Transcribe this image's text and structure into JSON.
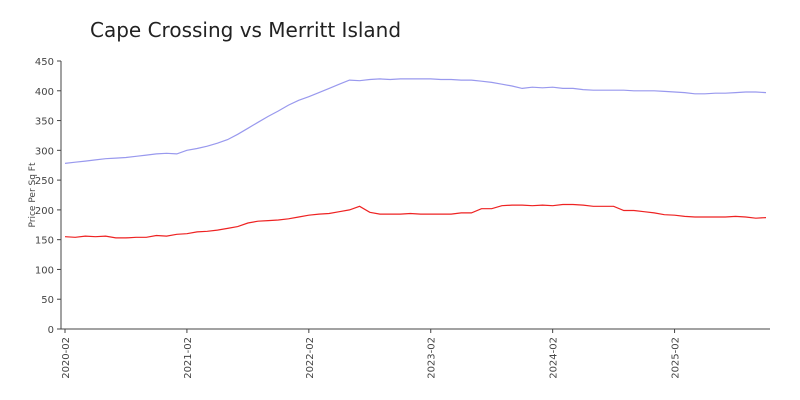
{
  "chart_data": {
    "type": "line",
    "title": "Cape Crossing vs Merritt Island",
    "ylabel": "Price Per Sq Ft",
    "x": [
      "2020-02",
      "2020-03",
      "2020-04",
      "2020-05",
      "2020-06",
      "2020-07",
      "2020-08",
      "2020-09",
      "2020-10",
      "2020-11",
      "2020-12",
      "2021-01",
      "2021-02",
      "2021-03",
      "2021-04",
      "2021-05",
      "2021-06",
      "2021-07",
      "2021-08",
      "2021-09",
      "2021-10",
      "2021-11",
      "2021-12",
      "2022-01",
      "2022-02",
      "2022-03",
      "2022-04",
      "2022-05",
      "2022-06",
      "2022-07",
      "2022-08",
      "2022-09",
      "2022-10",
      "2022-11",
      "2022-12",
      "2023-01",
      "2023-02",
      "2023-03",
      "2023-04",
      "2023-05",
      "2023-06",
      "2023-07",
      "2023-08",
      "2023-09",
      "2023-10",
      "2023-11",
      "2023-12",
      "2024-01",
      "2024-02",
      "2024-03",
      "2024-04",
      "2024-05",
      "2024-06",
      "2024-07",
      "2024-08",
      "2024-09",
      "2024-10",
      "2024-11",
      "2024-12",
      "2025-01",
      "2025-02",
      "2025-03",
      "2025-04",
      "2025-05",
      "2025-06",
      "2025-07",
      "2025-08",
      "2025-09",
      "2025-10",
      "2025-11"
    ],
    "series": [
      {
        "color": "#9999ee",
        "values": [
          278,
          280,
          282,
          284,
          286,
          287,
          288,
          290,
          292,
          294,
          295,
          294,
          300,
          303,
          307,
          312,
          318,
          327,
          337,
          347,
          357,
          366,
          376,
          384,
          390,
          397,
          404,
          411,
          418,
          417,
          419,
          420,
          419,
          420,
          420,
          420,
          420,
          419,
          419,
          418,
          418,
          416,
          414,
          411,
          408,
          404,
          406,
          405,
          406,
          404,
          404,
          402,
          401,
          401,
          401,
          401,
          400,
          400,
          400,
          399,
          398,
          397,
          395,
          395,
          396,
          396,
          397,
          398,
          398,
          397
        ]
      },
      {
        "color": "#ee2222",
        "values": [
          155,
          154,
          156,
          155,
          156,
          153,
          153,
          154,
          154,
          157,
          156,
          159,
          160,
          163,
          164,
          166,
          169,
          172,
          178,
          181,
          182,
          183,
          185,
          188,
          191,
          193,
          194,
          197,
          200,
          206,
          196,
          193,
          193,
          193,
          194,
          193,
          193,
          193,
          193,
          195,
          195,
          202,
          202,
          207,
          208,
          208,
          207,
          208,
          207,
          209,
          209,
          208,
          206,
          206,
          206,
          199,
          199,
          197,
          195,
          192,
          191,
          189,
          188,
          188,
          188,
          188,
          189,
          188,
          186,
          187
        ]
      }
    ],
    "xticks": [
      "2020-02",
      "2021-02",
      "2022-02",
      "2023-02",
      "2024-02",
      "2025-02"
    ],
    "ylim": [
      0,
      450
    ],
    "yticks": [
      0,
      50,
      100,
      150,
      200,
      250,
      300,
      350,
      400,
      450
    ]
  }
}
